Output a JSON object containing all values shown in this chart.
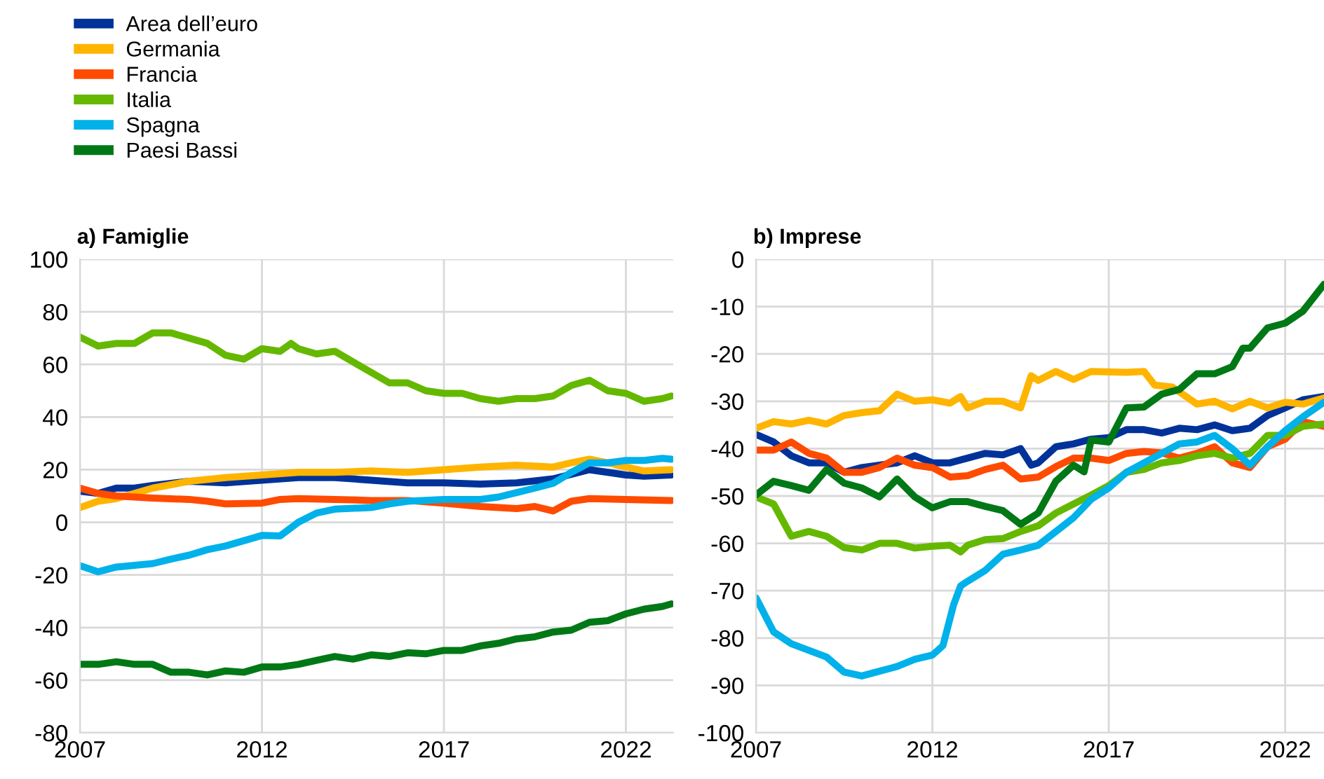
{
  "chart_data": [
    {
      "type": "line",
      "title": "a) Famiglie",
      "legend": "top left",
      "grid": true,
      "xlim": [
        2007,
        2023.3
      ],
      "xticks": [
        2007,
        2012,
        2017,
        2022
      ],
      "ylim": [
        -80,
        100
      ],
      "yticks": [
        -80,
        -60,
        -40,
        -20,
        0,
        20,
        40,
        60,
        80,
        100
      ],
      "series": [
        {
          "name": "Area dell’euro",
          "color": "#003299",
          "x": [
            2007,
            2007.5,
            2008,
            2008.5,
            2009,
            2010,
            2011,
            2012,
            2013,
            2014,
            2015,
            2016,
            2017,
            2018,
            2019,
            2020,
            2021,
            2022,
            2022.5,
            2023.25
          ],
          "values": [
            11.8,
            11,
            13,
            13,
            14,
            15.6,
            15,
            16,
            17,
            17,
            16,
            15,
            15,
            14.5,
            15,
            16.5,
            20,
            18,
            17.5,
            18
          ]
        },
        {
          "name": "Germania",
          "color": "#ffb400",
          "x": [
            2007,
            2007.5,
            2008,
            2009,
            2010,
            2011,
            2012,
            2013,
            2014,
            2015,
            2016,
            2017,
            2018,
            2019,
            2020,
            2020.5,
            2021,
            2021.5,
            2022,
            2022.5,
            2023.25
          ],
          "values": [
            5.6,
            8,
            9,
            13,
            15.6,
            17,
            18,
            19,
            19,
            19.5,
            19,
            20,
            21,
            21.7,
            21,
            22.6,
            24,
            22.6,
            21,
            19.5,
            20
          ]
        },
        {
          "name": "Francia",
          "color": "#ff4b00",
          "x": [
            2007,
            2007.5,
            2008,
            2009,
            2010,
            2010.5,
            2011,
            2012,
            2012.5,
            2013,
            2014,
            2015,
            2016,
            2017,
            2018,
            2019,
            2019.5,
            2020,
            2020.5,
            2021,
            2022,
            2023.25
          ],
          "values": [
            13,
            11,
            10,
            9.2,
            8.7,
            8,
            7,
            7.3,
            8.7,
            9,
            8.7,
            8.3,
            8.3,
            7.3,
            6,
            5.2,
            6,
            4.3,
            8,
            9,
            8.7,
            8.3
          ]
        },
        {
          "name": "Italia",
          "color": "#65b800",
          "x": [
            2007,
            2007.5,
            2008,
            2008.5,
            2009,
            2009.5,
            2010,
            2010.5,
            2011,
            2011.5,
            2012,
            2012.5,
            2012.8,
            2013,
            2013.5,
            2014,
            2014.5,
            2015,
            2015.5,
            2016,
            2016.5,
            2017,
            2017.5,
            2018,
            2018.5,
            2019,
            2019.5,
            2020,
            2020.5,
            2021,
            2021.5,
            2022,
            2022.5,
            2023,
            2023.25
          ],
          "values": [
            70.4,
            67,
            68,
            68,
            72,
            72,
            70,
            68,
            63.5,
            62,
            66,
            65,
            68,
            66,
            64,
            65,
            61,
            57,
            53,
            53,
            50,
            49,
            49,
            47,
            46,
            47,
            47,
            48,
            52,
            54,
            50,
            49,
            46,
            47,
            48
          ]
        },
        {
          "name": "Spagna",
          "color": "#00b1ea",
          "x": [
            2007,
            2007.5,
            2008,
            2009,
            2009.5,
            2010,
            2010.5,
            2011,
            2011.5,
            2012,
            2012.5,
            2013,
            2013.5,
            2014,
            2015,
            2015.5,
            2016,
            2017,
            2018,
            2018.5,
            2019,
            2019.5,
            2020,
            2020.5,
            2021,
            2021.5,
            2022,
            2022.5,
            2023,
            2023.25
          ],
          "values": [
            -16.5,
            -18.8,
            -17,
            -15.7,
            -14,
            -12.5,
            -10.4,
            -9,
            -7,
            -5,
            -5.2,
            0,
            3.5,
            5,
            5.6,
            7,
            8,
            8.7,
            8.7,
            9.6,
            11.3,
            13,
            14.8,
            19,
            22.6,
            22.6,
            23.5,
            23.5,
            24.3,
            24
          ]
        },
        {
          "name": "Paesi Bassi",
          "color": "#007816",
          "x": [
            2007,
            2007.5,
            2008,
            2008.5,
            2009,
            2009.5,
            2010,
            2010.5,
            2011,
            2011.5,
            2012,
            2012.5,
            2013,
            2013.5,
            2014,
            2014.5,
            2015,
            2015.5,
            2016,
            2016.5,
            2017,
            2017.5,
            2018,
            2018.5,
            2019,
            2019.5,
            2020,
            2020.5,
            2021,
            2021.5,
            2022,
            2022.5,
            2023,
            2023.25
          ],
          "values": [
            -54,
            -54,
            -53,
            -54,
            -54,
            -57,
            -57,
            -58,
            -56.5,
            -57,
            -55,
            -55,
            -54,
            -52.5,
            -51,
            -52,
            -50.4,
            -51,
            -49.6,
            -50,
            -48.7,
            -48.7,
            -47,
            -46,
            -44.3,
            -43.5,
            -41.7,
            -41,
            -38,
            -37.4,
            -34.8,
            -33,
            -32,
            -31
          ]
        }
      ]
    },
    {
      "type": "line",
      "title": "b) Imprese",
      "grid": true,
      "xlim": [
        2007,
        2023.1
      ],
      "xticks": [
        2007,
        2012,
        2017,
        2022
      ],
      "ylim": [
        -100,
        0
      ],
      "yticks": [
        -100,
        -90,
        -80,
        -70,
        -60,
        -50,
        -40,
        -30,
        -20,
        -10,
        0
      ],
      "series": [
        {
          "color": "#003299",
          "x": [
            2007,
            2007.5,
            2008,
            2008.5,
            2009,
            2009.5,
            2010,
            2010.5,
            2011,
            2011.5,
            2012,
            2012.5,
            2013,
            2013.5,
            2014,
            2014.5,
            2014.8,
            2015,
            2015.5,
            2016,
            2016.5,
            2017,
            2017.5,
            2018,
            2018.5,
            2019,
            2019.5,
            2020,
            2020.5,
            2021,
            2021.5,
            2022,
            2022.5,
            2023.1
          ],
          "values": [
            -37,
            -38.6,
            -41.5,
            -43,
            -43,
            -45,
            -44,
            -43.5,
            -43,
            -41.5,
            -43,
            -43,
            -42,
            -41,
            -41.3,
            -40,
            -43.5,
            -43,
            -39.6,
            -39,
            -38,
            -37.7,
            -36,
            -36,
            -36.7,
            -35.7,
            -36,
            -35,
            -36.2,
            -35.7,
            -33,
            -31.4,
            -29.7,
            -29
          ]
        },
        {
          "color": "#ffb400",
          "x": [
            2007,
            2007.5,
            2008,
            2008.5,
            2009,
            2009.5,
            2010,
            2010.5,
            2011,
            2011.5,
            2012,
            2012.5,
            2012.8,
            2013,
            2013.5,
            2014,
            2014.5,
            2014.8,
            2015,
            2015.5,
            2016,
            2016.5,
            2017.5,
            2018,
            2018.3,
            2018.8,
            2019,
            2019.5,
            2020,
            2020.5,
            2021,
            2021.5,
            2022,
            2022.5,
            2023.1
          ],
          "values": [
            -35.7,
            -34.3,
            -34.8,
            -34,
            -34.8,
            -33,
            -32.4,
            -32,
            -28.5,
            -30,
            -29.7,
            -30.4,
            -29,
            -31.4,
            -30,
            -30,
            -31.4,
            -24.6,
            -25.6,
            -23.7,
            -25.4,
            -23.7,
            -23.9,
            -23.7,
            -26.6,
            -27,
            -28,
            -30.6,
            -30,
            -31.6,
            -30,
            -31.4,
            -30.2,
            -30.6,
            -29.3
          ]
        },
        {
          "color": "#ff4b00",
          "x": [
            2007,
            2007.5,
            2008,
            2008.5,
            2009,
            2009.5,
            2010,
            2010.5,
            2011,
            2011.5,
            2012,
            2012.5,
            2013,
            2013.5,
            2014,
            2014.5,
            2015,
            2015.5,
            2016,
            2016.5,
            2017,
            2017.5,
            2018,
            2018.5,
            2019,
            2019.5,
            2020,
            2020.5,
            2021,
            2021.5,
            2022,
            2022.5,
            2023.1
          ],
          "values": [
            -40.3,
            -40.3,
            -38.6,
            -41,
            -42,
            -45,
            -45,
            -44,
            -42,
            -43.5,
            -44,
            -46,
            -45.7,
            -44.4,
            -43.5,
            -46.4,
            -46,
            -43.8,
            -42,
            -42,
            -42.5,
            -41,
            -40.6,
            -40.9,
            -42,
            -41,
            -39.6,
            -43,
            -44,
            -39.6,
            -38,
            -34.3,
            -35.3
          ]
        },
        {
          "color": "#65b800",
          "x": [
            2007,
            2007.5,
            2008,
            2008.5,
            2009,
            2009.5,
            2010,
            2010.5,
            2011,
            2011.5,
            2012,
            2012.5,
            2012.8,
            2013,
            2013.5,
            2014,
            2014.5,
            2015,
            2015.5,
            2016,
            2016.5,
            2017,
            2017.5,
            2018,
            2018.5,
            2019,
            2019.5,
            2020,
            2020.5,
            2021,
            2021.5,
            2022,
            2022.5,
            2023.1
          ],
          "values": [
            -50.2,
            -51.7,
            -58.5,
            -57.5,
            -58.5,
            -60.9,
            -61.4,
            -60,
            -60,
            -61,
            -60.6,
            -60.4,
            -61.8,
            -60.4,
            -59.2,
            -59,
            -57.5,
            -56.3,
            -53.6,
            -51.7,
            -49.8,
            -47.8,
            -45,
            -44.4,
            -43,
            -42.5,
            -41.5,
            -41,
            -42,
            -41,
            -37.2,
            -37.2,
            -35.3,
            -34.8
          ]
        },
        {
          "color": "#00b1ea",
          "x": [
            2007,
            2007.5,
            2008,
            2008.5,
            2009,
            2009.5,
            2010,
            2010.5,
            2011,
            2011.5,
            2012,
            2012.3,
            2012.6,
            2012.8,
            2013,
            2013.5,
            2014,
            2014.5,
            2015,
            2015.5,
            2016,
            2016.5,
            2017,
            2017.5,
            2018,
            2018.5,
            2019,
            2019.5,
            2020,
            2020.5,
            2021,
            2021.5,
            2022,
            2022.5,
            2023.1
          ],
          "values": [
            -71.5,
            -78.7,
            -81.2,
            -82.6,
            -84,
            -87.2,
            -88,
            -87,
            -86,
            -84.5,
            -83.6,
            -81.6,
            -73,
            -69,
            -68,
            -65.7,
            -62.3,
            -61.4,
            -60.4,
            -57.5,
            -54.6,
            -50.7,
            -48.3,
            -45,
            -43,
            -41,
            -39,
            -38.6,
            -37.2,
            -40,
            -43.5,
            -39.6,
            -36.2,
            -33.3,
            -30.2
          ]
        },
        {
          "color": "#007816",
          "x": [
            2007,
            2007.5,
            2008,
            2008.5,
            2009,
            2009.5,
            2010,
            2010.5,
            2011,
            2011.5,
            2012,
            2012.5,
            2013,
            2013.5,
            2014,
            2014.5,
            2015,
            2015.5,
            2016,
            2016.3,
            2016.5,
            2017,
            2017.5,
            2018,
            2018.5,
            2019,
            2019.5,
            2020,
            2020.5,
            2020.8,
            2021,
            2021.5,
            2022,
            2022.5,
            2023.1
          ],
          "values": [
            -49.8,
            -46.9,
            -47.8,
            -48.8,
            -44.4,
            -47.3,
            -48.3,
            -50.2,
            -46.4,
            -50.2,
            -52.5,
            -51.2,
            -51.2,
            -52.2,
            -53.1,
            -56,
            -53.6,
            -46.9,
            -43.5,
            -44.9,
            -38.2,
            -38.6,
            -31.4,
            -31.2,
            -28.5,
            -27.5,
            -24.2,
            -24.2,
            -22.7,
            -18.8,
            -18.8,
            -14.5,
            -13.5,
            -11,
            -5.3
          ]
        }
      ]
    }
  ]
}
